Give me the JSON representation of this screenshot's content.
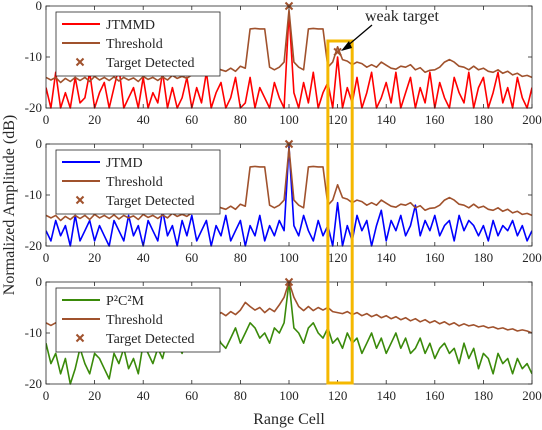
{
  "figure": {
    "ylabel": "Normalized Amplitude (dB)",
    "xlabel": "Range Cell",
    "annotation": "weak target",
    "highlight": {
      "xmin": 116,
      "xmax": 126,
      "color": "#F5B800"
    }
  },
  "chart_data": [
    {
      "type": "line",
      "xlim": [
        0,
        200
      ],
      "ylim": [
        -20,
        0
      ],
      "xticks": [
        0,
        20,
        40,
        60,
        80,
        100,
        120,
        140,
        160,
        180,
        200
      ],
      "yticks": [
        0,
        -10,
        -20
      ],
      "legend_placement": "top-left",
      "series": [
        {
          "name": "JTMMD",
          "color": "#FF0000",
          "x_start": 0,
          "x_step": 2,
          "values": [
            -16,
            -20,
            -13,
            -20,
            -17,
            -20,
            -14,
            -19,
            -18,
            -13,
            -20,
            -17,
            -15,
            -20,
            -16,
            -12,
            -20,
            -18,
            -16,
            -20,
            -14,
            -20,
            -17,
            -19,
            -13,
            -20,
            -16,
            -20,
            -18,
            -14,
            -20,
            -16,
            -19,
            -13,
            -20,
            -17,
            -15,
            -20,
            -18,
            -14,
            -20,
            -19,
            -14,
            -20,
            -16,
            -18,
            -20,
            -15,
            -18,
            -20,
            -1.2,
            -17,
            -20,
            -15,
            -19,
            -13,
            -20,
            -17,
            -15,
            -20,
            -10,
            -20,
            -16,
            -19,
            -14,
            -20,
            -17,
            -13,
            -20,
            -18,
            -15,
            -19,
            -13,
            -20,
            -17,
            -14,
            -20,
            -16,
            -19,
            -13,
            -20,
            -15,
            -18,
            -20,
            -14,
            -17,
            -19,
            -13,
            -20,
            -16,
            -14,
            -20,
            -17,
            -13,
            -19,
            -16,
            -20,
            -14,
            -18,
            -20,
            -16
          ]
        },
        {
          "name": "Threshold",
          "color": "#A0522D",
          "x_start": 0,
          "x_step": 2,
          "values": [
            -14,
            -14.5,
            -14,
            -15,
            -14.2,
            -14.8,
            -14,
            -14.6,
            -14,
            -14.8,
            -13.8,
            -14.5,
            -14,
            -14.6,
            -13.9,
            -14.7,
            -14,
            -14.5,
            -14.1,
            -14.8,
            -13.8,
            -14.4,
            -14,
            -14.6,
            -13.9,
            -14.5,
            -13.6,
            -14.2,
            -13.8,
            -14.2,
            -13.5,
            -12.5,
            -13,
            -12.4,
            -12.8,
            -12,
            -12.5,
            -12.8,
            -12.2,
            -12.8,
            -11.8,
            -12.2,
            -4.5,
            -4.4,
            -4.5,
            -4.5,
            -12,
            -12.5,
            -12,
            -11,
            -0.8,
            -11,
            -12,
            -12.5,
            -4.5,
            -4.4,
            -4.5,
            -4.5,
            -12,
            -11,
            -8,
            -10.5,
            -10.8,
            -11.5,
            -11,
            -11.3,
            -12,
            -11.5,
            -12,
            -11,
            -11.6,
            -12.2,
            -12.4,
            -11.8,
            -12,
            -11.5,
            -12.5,
            -12.1,
            -13,
            -12.6,
            -12.5,
            -12,
            -11,
            -10.5,
            -11,
            -11.8,
            -12,
            -12.5,
            -11.8,
            -12.5,
            -12.2,
            -12.8,
            -13,
            -12.5,
            -13.2,
            -12.8,
            -13.5,
            -13.2,
            -13.8,
            -13.6,
            -14
          ]
        },
        {
          "name": "Target Detected",
          "color": "#A0522D",
          "marker": "x",
          "points": [
            {
              "x": 100,
              "y": 0
            },
            {
              "x": 120,
              "y": -9
            }
          ]
        }
      ]
    },
    {
      "type": "line",
      "xlim": [
        0,
        200
      ],
      "ylim": [
        -20,
        0
      ],
      "xticks": [
        0,
        20,
        40,
        60,
        80,
        100,
        120,
        140,
        160,
        180,
        200
      ],
      "yticks": [
        0,
        -10,
        -20
      ],
      "legend_placement": "top-left",
      "series": [
        {
          "name": "JTMD",
          "color": "#0000FF",
          "x_start": 0,
          "x_step": 2,
          "values": [
            -17,
            -19,
            -15,
            -18,
            -16,
            -20,
            -14,
            -19,
            -17,
            -15,
            -19,
            -16,
            -18,
            -20,
            -15,
            -17,
            -19,
            -14,
            -18,
            -16,
            -20,
            -15,
            -17,
            -19,
            -13,
            -18,
            -16,
            -20,
            -15,
            -18,
            -14,
            -19,
            -17,
            -15,
            -20,
            -16,
            -18,
            -14,
            -19,
            -17,
            -15,
            -20,
            -16,
            -18,
            -14,
            -19,
            -16,
            -18,
            -15,
            -17,
            -0.5,
            -16,
            -18,
            -14,
            -17,
            -19,
            -15,
            -18,
            -16,
            -20,
            -11.5,
            -20,
            -16,
            -19,
            -14,
            -17,
            -15,
            -20,
            -16,
            -13,
            -19,
            -15,
            -17,
            -14,
            -18,
            -16,
            -12,
            -18,
            -15,
            -17,
            -14,
            -18,
            -16,
            -15,
            -19,
            -14,
            -17,
            -15,
            -16,
            -18,
            -16,
            -19,
            -15,
            -18,
            -16,
            -17,
            -15,
            -18,
            -16,
            -19,
            -17
          ]
        },
        {
          "name": "Threshold",
          "color": "#A0522D",
          "x_start": 0,
          "x_step": 2,
          "values": [
            -14,
            -14.5,
            -14,
            -15,
            -14.2,
            -14.8,
            -14,
            -14.6,
            -14,
            -14.8,
            -13.8,
            -14.5,
            -14,
            -14.6,
            -13.9,
            -14.7,
            -14,
            -14.5,
            -14.1,
            -14.8,
            -13.8,
            -14.4,
            -14,
            -14.6,
            -13.9,
            -14.5,
            -13.6,
            -14.2,
            -13.8,
            -14.2,
            -13.5,
            -12.5,
            -13,
            -12.4,
            -12.8,
            -12,
            -12.5,
            -12.8,
            -12.2,
            -12.8,
            -11.8,
            -12.2,
            -4.5,
            -4.4,
            -4.5,
            -4.5,
            -12,
            -12.5,
            -12,
            -11,
            -0.8,
            -11,
            -12,
            -12.5,
            -4.5,
            -4.4,
            -4.5,
            -4.5,
            -12,
            -11,
            -8,
            -10.5,
            -10.8,
            -11.5,
            -11,
            -11.3,
            -12,
            -11.5,
            -12,
            -11,
            -11.6,
            -12.2,
            -12.4,
            -11.8,
            -12,
            -11.5,
            -12.5,
            -12.1,
            -13,
            -12.6,
            -12.5,
            -12,
            -11,
            -10.5,
            -11,
            -11.8,
            -12,
            -12.5,
            -11.8,
            -12.5,
            -12.2,
            -12.8,
            -13,
            -12.5,
            -13.2,
            -12.8,
            -13.5,
            -13.2,
            -13.8,
            -13.6,
            -14
          ]
        },
        {
          "name": "Target Detected",
          "color": "#A0522D",
          "marker": "x",
          "points": [
            {
              "x": 100,
              "y": 0
            }
          ]
        }
      ]
    },
    {
      "type": "line",
      "xlim": [
        0,
        200
      ],
      "ylim": [
        -20,
        0
      ],
      "xticks": [
        0,
        20,
        40,
        60,
        80,
        100,
        120,
        140,
        160,
        180,
        200
      ],
      "yticks": [
        0,
        -10,
        -20
      ],
      "legend_placement": "top-left",
      "series": [
        {
          "name": "P²C²M",
          "color": "#3A8A0A",
          "x_start": 0,
          "x_step": 2,
          "values": [
            -12,
            -16,
            -14,
            -18,
            -15,
            -20,
            -17,
            -13,
            -16,
            -18,
            -14,
            -15,
            -17,
            -19,
            -14,
            -16,
            -13,
            -17,
            -15,
            -18,
            -12,
            -14,
            -16,
            -13,
            -15,
            -11,
            -13,
            -12,
            -14,
            -11,
            -13,
            -10,
            -12,
            -9,
            -11,
            -10,
            -12,
            -13,
            -11,
            -9,
            -12,
            -10,
            -8,
            -9,
            -11,
            -10,
            -12,
            -9,
            -10,
            -8,
            0,
            -9,
            -10,
            -12,
            -9,
            -8,
            -10,
            -11,
            -9,
            -12,
            -11,
            -13,
            -10,
            -12,
            -11,
            -14,
            -12,
            -10,
            -13,
            -11,
            -14,
            -12,
            -10,
            -13,
            -11,
            -14,
            -13,
            -11,
            -14,
            -12,
            -15,
            -13,
            -12,
            -14,
            -13,
            -16,
            -12,
            -15,
            -13,
            -17,
            -14,
            -15,
            -18,
            -14,
            -16,
            -15,
            -18,
            -15,
            -17,
            -16,
            -18
          ]
        },
        {
          "name": "Threshold",
          "color": "#A0522D",
          "x_start": 0,
          "x_step": 2,
          "values": [
            -8,
            -8.5,
            -8,
            -8.8,
            -8.2,
            -8.6,
            -8,
            -8.5,
            -8.1,
            -8.7,
            -7.8,
            -8.3,
            -8,
            -8.6,
            -7.9,
            -8.4,
            -7.6,
            -8.2,
            -7.6,
            -8,
            -7,
            -7.6,
            -7.4,
            -7.8,
            -7,
            -7.4,
            -6.6,
            -7.2,
            -6.8,
            -7,
            -6.4,
            -6.8,
            -6,
            -6.6,
            -6.2,
            -6.8,
            -6,
            -6.6,
            -5.8,
            -6.4,
            -5.5,
            -4,
            -4.8,
            -5.5,
            -5,
            -6,
            -5.2,
            -5.8,
            -4.5,
            -3,
            0,
            -3,
            -4.8,
            -5.6,
            -4.8,
            -5.6,
            -5,
            -5.5,
            -5,
            -5.8,
            -6,
            -6.2,
            -5.8,
            -6.4,
            -6,
            -6.6,
            -6.2,
            -6.8,
            -6.4,
            -7,
            -6.6,
            -7.2,
            -6.8,
            -7.4,
            -7,
            -7.6,
            -7.2,
            -7.8,
            -7.4,
            -8,
            -7.6,
            -8.2,
            -7.8,
            -8.4,
            -8,
            -8.6,
            -8.2,
            -8.6,
            -8.4,
            -8.8,
            -8.6,
            -9,
            -8.8,
            -9.2,
            -9,
            -9.4,
            -9.2,
            -9.6,
            -9.4,
            -9.6,
            -10
          ]
        },
        {
          "name": "Target Detected",
          "color": "#A0522D",
          "marker": "x",
          "points": [
            {
              "x": 100,
              "y": 0
            }
          ]
        }
      ]
    }
  ]
}
